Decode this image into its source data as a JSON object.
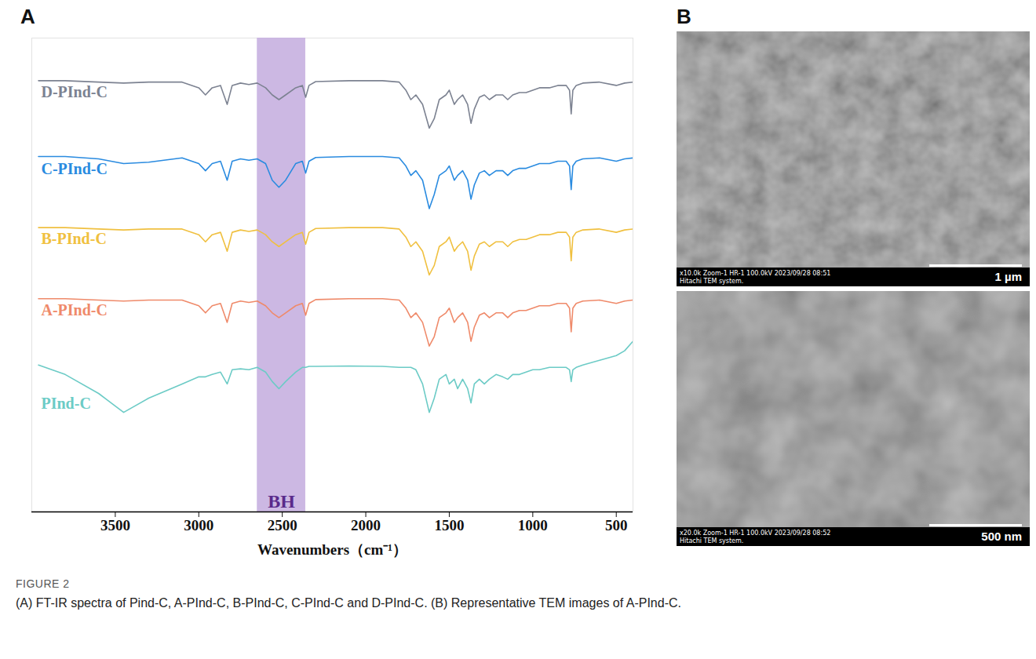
{
  "figure_label": "FIGURE 2",
  "caption": "(A) FT-IR spectra of Pind-C, A-PInd-C, B-PInd-C, C-PInd-C and D-PInd-C. (B) Representative TEM images of A-PInd-C.",
  "chart_data": {
    "panel": "A",
    "type": "line",
    "x_label": "Wavenumbers（cm⁻¹）",
    "xlim": [
      4000,
      400
    ],
    "xticks": [
      3500,
      3000,
      2500,
      2000,
      1500,
      1000,
      500
    ],
    "ylim": [
      0,
      100
    ],
    "tick_labels": "x",
    "grid": false,
    "annotations": [
      {
        "label": "BH",
        "x_range": [
          2650,
          2360
        ]
      }
    ],
    "x": [
      3960,
      3800,
      3600,
      3450,
      3300,
      3100,
      3000,
      2960,
      2920,
      2870,
      2830,
      2800,
      2750,
      2700,
      2650,
      2600,
      2560,
      2520,
      2480,
      2420,
      2380,
      2360,
      2340,
      2300,
      2100,
      1900,
      1800,
      1760,
      1730,
      1700,
      1660,
      1620,
      1590,
      1560,
      1520,
      1500,
      1470,
      1450,
      1420,
      1390,
      1370,
      1350,
      1320,
      1290,
      1260,
      1220,
      1180,
      1150,
      1120,
      1080,
      1040,
      1000,
      960,
      900,
      850,
      800,
      780,
      770,
      760,
      740,
      700,
      600,
      500,
      450,
      400
    ],
    "series": [
      {
        "name": "D-PInd-C",
        "color": "#7c8291",
        "values": [
          91,
          91,
          90.7,
          90.5,
          90.7,
          90.7,
          89.5,
          88,
          89.5,
          90,
          86,
          90,
          90.5,
          90.2,
          90.5,
          89.5,
          88,
          87,
          88,
          89.5,
          90,
          87.5,
          90,
          90.8,
          91,
          91,
          90.7,
          89,
          87,
          88,
          86,
          81,
          83,
          87,
          88,
          89,
          86,
          87,
          88,
          86,
          82,
          85,
          87.5,
          88,
          87,
          88,
          88,
          87,
          88,
          88.5,
          88.5,
          89,
          89.5,
          89.5,
          90,
          90,
          89,
          84,
          89,
          90,
          90.5,
          90.7,
          90,
          90.5,
          90.7
        ]
      },
      {
        "name": "C-PInd-C",
        "color": "#2a8be0",
        "values": [
          75,
          75,
          74.5,
          73.5,
          73.8,
          74.7,
          73.5,
          72,
          73.5,
          74,
          70,
          74,
          74.5,
          74.2,
          74.5,
          73.5,
          70,
          68.5,
          70,
          73.5,
          74,
          71.5,
          74,
          74.8,
          75,
          75,
          74.7,
          73,
          71,
          72,
          70,
          64,
          67,
          71,
          72,
          73,
          70,
          71,
          72,
          70,
          66,
          69,
          71.5,
          72,
          71,
          72,
          72,
          71,
          72,
          72.5,
          72.5,
          73,
          73.5,
          73.5,
          74,
          74,
          73,
          68,
          73,
          74,
          74.5,
          74.7,
          74,
          74.5,
          74.7
        ]
      },
      {
        "name": "B-PInd-C",
        "color": "#f0c040",
        "values": [
          60,
          60,
          59.7,
          59.5,
          59.7,
          59.7,
          58.5,
          57,
          58.5,
          59,
          55,
          59,
          59.5,
          59.2,
          59.5,
          58.5,
          57,
          56,
          57,
          58.5,
          59,
          56.5,
          59,
          59.8,
          60,
          60,
          59.7,
          58,
          56,
          57,
          55,
          50,
          52,
          56,
          57,
          58,
          55,
          56,
          57,
          55,
          51,
          54,
          56.5,
          57,
          56,
          57,
          57,
          56,
          57,
          57.5,
          57.5,
          58,
          58.5,
          58.5,
          59,
          59,
          58,
          53,
          58,
          59,
          59.5,
          59.7,
          59,
          59.5,
          59.7
        ]
      },
      {
        "name": "A-PInd-C",
        "color": "#ef8a6a",
        "values": [
          45,
          45,
          44.7,
          44.5,
          44.7,
          44.7,
          43.5,
          42,
          43.5,
          44,
          40,
          44,
          44.5,
          44.2,
          44.5,
          43.5,
          42,
          41,
          42,
          43.5,
          44,
          41.5,
          44,
          44.8,
          45,
          45,
          44.7,
          43,
          41,
          42,
          40,
          35,
          37,
          41,
          42,
          43,
          40,
          41,
          42,
          40,
          36,
          39,
          41.5,
          42,
          41,
          42,
          42,
          41,
          42,
          42.5,
          42.5,
          43,
          43.5,
          43.5,
          44,
          44,
          43,
          38,
          43,
          44,
          44.5,
          44.7,
          44,
          44.5,
          44.7
        ]
      },
      {
        "name": "PInd-C",
        "color": "#6ccbc6",
        "values": [
          31,
          29,
          25,
          21,
          24,
          27,
          28.5,
          28.5,
          29,
          29.5,
          27,
          30,
          30.2,
          30,
          30.5,
          29.5,
          27.5,
          26,
          27.5,
          29.5,
          30.5,
          30.5,
          30.7,
          30.7,
          30.8,
          30.7,
          30.5,
          30.5,
          30.5,
          30,
          27,
          21,
          24,
          28,
          29,
          27,
          28,
          26,
          28,
          26,
          23,
          27,
          28,
          27,
          28,
          29,
          28.5,
          28,
          29,
          29,
          29.5,
          30,
          30,
          30.5,
          30.5,
          30.5,
          30,
          27.5,
          30,
          30.5,
          31,
          32,
          33,
          34,
          36
        ]
      }
    ]
  },
  "panel_b": {
    "panel": "B",
    "images": [
      {
        "scale_bar": "1 µm",
        "info": "x10.0k Zoom-1 HR-1 100.0kV 2023/09/28 08:51",
        "system": "Hitachi TEM system."
      },
      {
        "scale_bar": "500 nm",
        "info": "x20.0k Zoom-1 HR-1 100.0kV 2023/09/28 08:52",
        "system": "Hitachi TEM system."
      }
    ]
  }
}
